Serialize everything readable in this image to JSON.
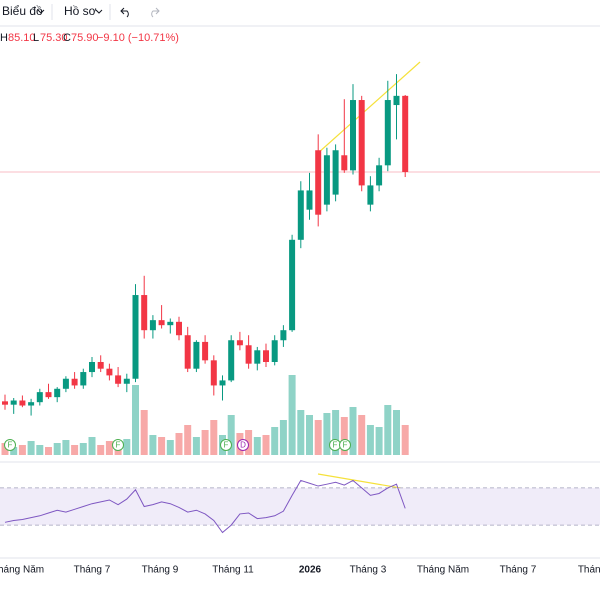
{
  "toolbar": {
    "chart_menu": "Biểu đồ",
    "profile_menu": "Hồ sơ"
  },
  "legend": {
    "high_label": "H",
    "high": "85.10",
    "low_label": "L",
    "low": "75.30",
    "close_label": "C",
    "close": "75.90",
    "change": "−9.10 (−10.71%)"
  },
  "price": {
    "ylim": [
      44,
      90
    ],
    "candles": [
      [
        48.5,
        49.3,
        47.5,
        48.1
      ],
      [
        48.1,
        48.9,
        47.0,
        48.6
      ],
      [
        48.6,
        49.2,
        47.8,
        48.0
      ],
      [
        48.0,
        48.8,
        46.8,
        48.4
      ],
      [
        48.4,
        50.0,
        48.0,
        49.6
      ],
      [
        49.6,
        50.6,
        48.8,
        49.0
      ],
      [
        49.0,
        50.2,
        48.4,
        50.0
      ],
      [
        50.0,
        51.5,
        49.6,
        51.2
      ],
      [
        51.2,
        52.0,
        50.0,
        50.4
      ],
      [
        50.4,
        52.4,
        50.0,
        52.0
      ],
      [
        52.0,
        53.8,
        51.4,
        53.2
      ],
      [
        53.2,
        54.0,
        52.0,
        52.4
      ],
      [
        52.4,
        53.0,
        51.0,
        51.6
      ],
      [
        51.6,
        52.6,
        50.2,
        50.6
      ],
      [
        50.6,
        51.8,
        49.6,
        51.2
      ],
      [
        51.2,
        62.5,
        50.8,
        61.2
      ],
      [
        61.2,
        63.5,
        56.0,
        57.0
      ],
      [
        57.0,
        58.8,
        56.0,
        58.2
      ],
      [
        58.2,
        60.0,
        57.2,
        57.6
      ],
      [
        57.6,
        58.4,
        56.6,
        58.0
      ],
      [
        58.0,
        58.6,
        55.8,
        56.4
      ],
      [
        56.4,
        57.4,
        52.0,
        52.4
      ],
      [
        52.4,
        55.8,
        52.0,
        55.6
      ],
      [
        55.6,
        56.4,
        53.0,
        53.4
      ],
      [
        53.4,
        54.0,
        49.2,
        50.4
      ],
      [
        50.4,
        51.6,
        48.6,
        51.0
      ],
      [
        51.0,
        56.4,
        50.8,
        55.8
      ],
      [
        55.8,
        56.8,
        54.6,
        55.2
      ],
      [
        55.2,
        56.4,
        52.4,
        53.0
      ],
      [
        53.0,
        55.0,
        52.2,
        54.6
      ],
      [
        54.6,
        55.4,
        52.6,
        53.2
      ],
      [
        53.2,
        56.4,
        52.8,
        55.8
      ],
      [
        55.8,
        57.6,
        55.0,
        57.0
      ],
      [
        57.0,
        68.4,
        56.8,
        67.8
      ],
      [
        67.8,
        74.8,
        66.8,
        73.7
      ],
      [
        71.4,
        75.8,
        70.2,
        73.7
      ],
      [
        78.5,
        80.4,
        69.4,
        70.8
      ],
      [
        72.0,
        78.8,
        71.2,
        77.9
      ],
      [
        73.2,
        79.2,
        72.4,
        78.5
      ],
      [
        77.9,
        84.6,
        75.8,
        76.1
      ],
      [
        76.1,
        86.4,
        75.6,
        84.5
      ],
      [
        84.5,
        85.0,
        73.6,
        74.3
      ],
      [
        72.0,
        75.4,
        71.2,
        74.3
      ],
      [
        74.3,
        77.6,
        73.6,
        76.7
      ],
      [
        76.7,
        86.8,
        76.0,
        84.5
      ],
      [
        83.9,
        87.6,
        79.8,
        85.0
      ],
      [
        85.0,
        85.1,
        75.3,
        75.9
      ]
    ],
    "volumes": [
      12,
      8,
      10,
      14,
      10,
      8,
      12,
      15,
      10,
      12,
      18,
      10,
      14,
      12,
      16,
      70,
      45,
      20,
      18,
      15,
      22,
      30,
      18,
      25,
      35,
      20,
      40,
      22,
      25,
      18,
      20,
      28,
      35,
      80,
      45,
      40,
      35,
      42,
      45,
      38,
      48,
      40,
      30,
      28,
      50,
      45,
      30
    ],
    "volume_ylim": [
      0,
      100
    ]
  },
  "rsi": {
    "ylim": [
      0,
      100
    ],
    "band": [
      30,
      70
    ],
    "values": [
      33,
      35,
      36,
      38,
      40,
      43,
      46,
      44,
      47,
      50,
      53,
      55,
      57,
      52,
      58,
      68,
      50,
      52,
      55,
      53,
      49,
      44,
      46,
      42,
      35,
      22,
      30,
      42,
      43,
      37,
      38,
      40,
      45,
      62,
      78,
      75,
      72,
      74,
      76,
      73,
      78,
      70,
      62,
      64,
      70,
      74,
      48
    ]
  },
  "events": [
    "F",
    "F",
    "F",
    "D",
    "F",
    "F"
  ],
  "x_labels": [
    "Tháng Năm",
    "Tháng 7",
    "Tháng 9",
    "Tháng 11",
    "2026",
    "Tháng 3",
    "Tháng Năm",
    "Tháng 7",
    "Tháng"
  ]
}
